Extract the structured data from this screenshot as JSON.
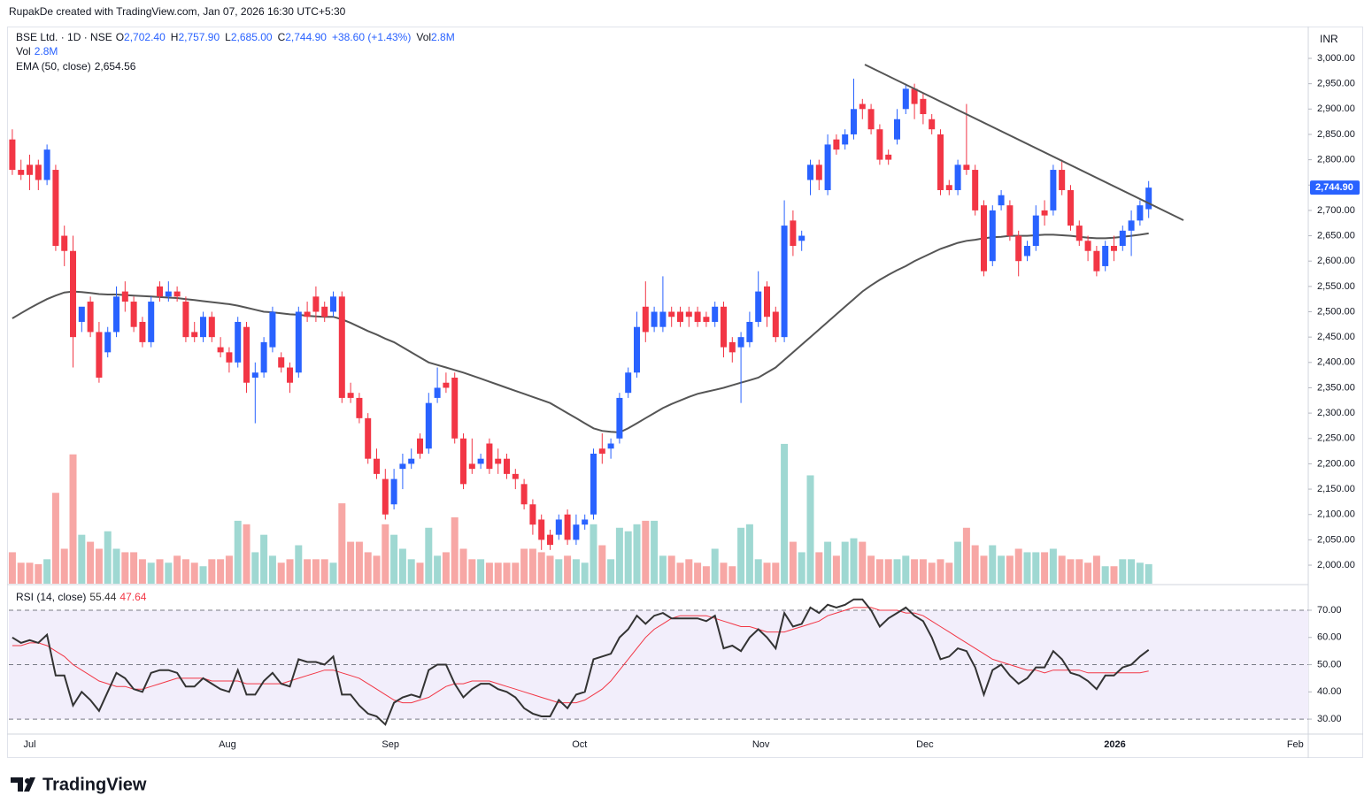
{
  "header": "RupakDe created with TradingView.com, Jan 07, 2026 16:30 UTC+5:30",
  "footer": "TradingView",
  "chart_data": {
    "type": "candlestick",
    "symbol": "BSE Ltd. · 1D · NSE",
    "ohlc_legend": [
      {
        "key": "O",
        "value": "2,702.40"
      },
      {
        "key": "H",
        "value": "2,757.90"
      },
      {
        "key": "L",
        "value": "2,685.00"
      },
      {
        "key": "C",
        "value": "2,744.90"
      },
      {
        "key": "",
        "value": "+38.60 (+1.43%)"
      },
      {
        "key": "Vol",
        "value": "2.8M"
      }
    ],
    "currency": "INR",
    "up_color": "#2962ff",
    "down_color": "#f23645",
    "open": [
      2840,
      2780,
      2790,
      2790,
      2760,
      2780,
      2650,
      2620,
      2480,
      2520,
      2460,
      2420,
      2460,
      2540,
      2520,
      2480,
      2440,
      2550,
      2530,
      2540,
      2520,
      2460,
      2450,
      2490,
      2430,
      2420,
      2400,
      2470,
      2370,
      2380,
      2430,
      2410,
      2390,
      2380,
      2500,
      2530,
      2510,
      2500,
      2530,
      2340,
      2330,
      2290,
      2210,
      2170,
      2120,
      2190,
      2200,
      2250,
      2230,
      2330,
      2360,
      2370,
      2250,
      2200,
      2200,
      2240,
      2210,
      2210,
      2180,
      2160,
      2120,
      2090,
      2060,
      2060,
      2100,
      2050,
      2080,
      2100,
      2230,
      2230,
      2250,
      2340,
      2380,
      2510,
      2470,
      2470,
      2500,
      2500,
      2500,
      2500,
      2490,
      2480,
      2510,
      2440,
      2430,
      2440,
      2480,
      2550,
      2500,
      2450,
      2680,
      2640,
      2760,
      2790,
      2740,
      2840,
      2830,
      2850,
      2910,
      2900,
      2860,
      2810,
      2840,
      2900,
      2940,
      2920,
      2880,
      2850,
      2750,
      2740,
      2790,
      2780,
      2710,
      2600,
      2710,
      2710,
      2650,
      2610,
      2630,
      2700,
      2700,
      2780,
      2740,
      2670,
      2640,
      2620,
      2590,
      2630,
      2630,
      2660,
      2680,
      2702.4
    ],
    "high": [
      2860,
      2800,
      2810,
      2800,
      2830,
      2790,
      2670,
      2650,
      2500,
      2530,
      2480,
      2470,
      2550,
      2560,
      2530,
      2490,
      2530,
      2560,
      2560,
      2550,
      2530,
      2480,
      2500,
      2500,
      2450,
      2430,
      2490,
      2480,
      2400,
      2450,
      2510,
      2420,
      2400,
      2510,
      2520,
      2550,
      2520,
      2540,
      2540,
      2360,
      2340,
      2300,
      2230,
      2190,
      2190,
      2220,
      2230,
      2260,
      2340,
      2390,
      2380,
      2380,
      2260,
      2250,
      2220,
      2250,
      2230,
      2220,
      2190,
      2170,
      2130,
      2100,
      2070,
      2100,
      2110,
      2100,
      2100,
      2230,
      2260,
      2250,
      2340,
      2390,
      2500,
      2560,
      2510,
      2570,
      2510,
      2510,
      2510,
      2510,
      2500,
      2520,
      2520,
      2450,
      2460,
      2500,
      2580,
      2560,
      2510,
      2720,
      2700,
      2660,
      2800,
      2800,
      2850,
      2850,
      2860,
      2960,
      2920,
      2910,
      2870,
      2820,
      2900,
      2950,
      2950,
      2930,
      2890,
      2860,
      2760,
      2800,
      2910,
      2790,
      2720,
      2710,
      2740,
      2720,
      2660,
      2640,
      2710,
      2720,
      2790,
      2800,
      2750,
      2680,
      2650,
      2630,
      2640,
      2650,
      2670,
      2700,
      2720,
      2757.9
    ],
    "low": [
      2770,
      2760,
      2740,
      2740,
      2750,
      2620,
      2590,
      2390,
      2460,
      2450,
      2360,
      2410,
      2450,
      2500,
      2460,
      2430,
      2430,
      2520,
      2520,
      2520,
      2440,
      2440,
      2440,
      2440,
      2410,
      2380,
      2390,
      2340,
      2280,
      2370,
      2420,
      2380,
      2340,
      2370,
      2480,
      2480,
      2480,
      2490,
      2320,
      2320,
      2280,
      2200,
      2170,
      2090,
      2110,
      2150,
      2190,
      2210,
      2220,
      2320,
      2340,
      2240,
      2150,
      2180,
      2190,
      2180,
      2180,
      2170,
      2150,
      2110,
      2060,
      2030,
      2030,
      2050,
      2040,
      2040,
      2070,
      2090,
      2200,
      2210,
      2240,
      2330,
      2370,
      2440,
      2460,
      2460,
      2470,
      2470,
      2470,
      2470,
      2470,
      2470,
      2410,
      2400,
      2320,
      2430,
      2470,
      2470,
      2440,
      2440,
      2610,
      2620,
      2730,
      2740,
      2730,
      2810,
      2820,
      2840,
      2880,
      2850,
      2790,
      2790,
      2830,
      2890,
      2880,
      2870,
      2850,
      2730,
      2730,
      2730,
      2770,
      2690,
      2570,
      2590,
      2700,
      2640,
      2570,
      2600,
      2620,
      2670,
      2690,
      2730,
      2660,
      2630,
      2600,
      2570,
      2580,
      2600,
      2620,
      2610,
      2670,
      2685
    ],
    "close": [
      2780,
      2770,
      2770,
      2760,
      2820,
      2630,
      2620,
      2450,
      2510,
      2460,
      2370,
      2460,
      2530,
      2520,
      2470,
      2440,
      2520,
      2530,
      2540,
      2530,
      2450,
      2450,
      2490,
      2450,
      2420,
      2400,
      2480,
      2360,
      2380,
      2440,
      2500,
      2390,
      2360,
      2500,
      2490,
      2500,
      2490,
      2530,
      2330,
      2330,
      2290,
      2210,
      2180,
      2100,
      2170,
      2200,
      2210,
      2220,
      2320,
      2350,
      2350,
      2250,
      2160,
      2190,
      2210,
      2190,
      2200,
      2180,
      2170,
      2120,
      2080,
      2050,
      2040,
      2090,
      2050,
      2080,
      2090,
      2220,
      2220,
      2240,
      2330,
      2380,
      2470,
      2460,
      2500,
      2500,
      2490,
      2480,
      2490,
      2480,
      2480,
      2510,
      2430,
      2420,
      2450,
      2480,
      2540,
      2490,
      2450,
      2670,
      2630,
      2650,
      2790,
      2760,
      2830,
      2820,
      2850,
      2900,
      2900,
      2860,
      2800,
      2800,
      2880,
      2940,
      2910,
      2890,
      2860,
      2740,
      2740,
      2790,
      2780,
      2700,
      2580,
      2700,
      2730,
      2650,
      2600,
      2630,
      2690,
      2690,
      2780,
      2740,
      2670,
      2640,
      2620,
      2580,
      2630,
      2620,
      2660,
      2680,
      2710,
      2744.9
    ],
    "xlim": [
      -0.4,
      149.4
    ],
    "xticks": [
      {
        "value": 2,
        "label": "Jul"
      },
      {
        "value": 24.8,
        "label": "Aug"
      },
      {
        "value": 43.6,
        "label": "Sep"
      },
      {
        "value": 65.4,
        "label": "Oct"
      },
      {
        "value": 86.3,
        "label": "Nov"
      },
      {
        "value": 105.2,
        "label": "Dec"
      },
      {
        "value": 127.1,
        "label": "2026"
      },
      {
        "value": 147.9,
        "label": "Feb"
      }
    ],
    "ylim": [
      1963.4,
      3062.8
    ],
    "yticks": [
      {
        "value": 2000,
        "label": "2,000.00"
      },
      {
        "value": 2050,
        "label": "2,050.00"
      },
      {
        "value": 2100,
        "label": "2,100.00"
      },
      {
        "value": 2150,
        "label": "2,150.00"
      },
      {
        "value": 2200,
        "label": "2,200.00"
      },
      {
        "value": 2250,
        "label": "2,250.00"
      },
      {
        "value": 2300,
        "label": "2,300.00"
      },
      {
        "value": 2350,
        "label": "2,350.00"
      },
      {
        "value": 2400,
        "label": "2,400.00"
      },
      {
        "value": 2450,
        "label": "2,450.00"
      },
      {
        "value": 2500,
        "label": "2,500.00"
      },
      {
        "value": 2550,
        "label": "2,550.00"
      },
      {
        "value": 2600,
        "label": "2,600.00"
      },
      {
        "value": 2650,
        "label": "2,650.00"
      },
      {
        "value": 2700,
        "label": "2,700.00"
      },
      {
        "value": 2750,
        "label": "2,750.00"
      },
      {
        "value": 2800,
        "label": "2,800.00"
      },
      {
        "value": 2850,
        "label": "2,850.00"
      },
      {
        "value": 2900,
        "label": "2,900.00"
      },
      {
        "value": 2950,
        "label": "2,950.00"
      },
      {
        "value": 3000,
        "label": "3,000.00"
      }
    ],
    "last_price": {
      "value": 2744.9,
      "label": "2,744.90"
    },
    "volume": {
      "name": "Vol",
      "label": "2.8M",
      "vlim": [
        0,
        79.7
      ],
      "up_color": "#9fd8d2",
      "down_color": "#f7a7a5",
      "values": [
        4.5,
        3,
        3,
        2.8,
        3.5,
        13,
        5,
        18.5,
        7,
        6,
        5,
        7.5,
        5,
        4.5,
        4.5,
        3.5,
        3,
        3.5,
        3,
        4,
        3.5,
        3,
        2.5,
        3.5,
        3.5,
        4,
        9,
        8.5,
        4.5,
        7,
        4,
        3,
        3.5,
        5.5,
        3.5,
        3.5,
        3.5,
        3,
        11.5,
        6,
        6,
        4.5,
        4,
        8.5,
        7,
        5,
        3.5,
        3,
        8,
        4,
        4.5,
        9.5,
        5,
        3.5,
        3.5,
        3,
        3,
        3,
        3,
        5,
        5,
        4.5,
        4,
        3.5,
        4,
        3.5,
        3,
        8.5,
        5.5,
        3.5,
        8,
        7.5,
        8.5,
        9,
        9,
        4,
        4,
        3,
        3.5,
        3,
        2.5,
        5,
        3,
        2.5,
        8,
        8.5,
        3.5,
        3,
        3,
        20,
        6,
        4.5,
        15.5,
        4.5,
        6,
        4,
        6,
        6.5,
        6,
        4,
        3.5,
        3.5,
        3.5,
        4,
        3.5,
        3.5,
        3,
        3.5,
        3,
        6,
        8,
        5.5,
        4,
        5.5,
        4,
        4,
        5,
        4.5,
        4.5,
        4.5,
        5,
        4,
        3.5,
        3.5,
        3,
        4,
        2.5,
        2.5,
        3.5,
        3.5,
        3,
        2.8
      ]
    },
    "ema": {
      "name": "EMA (50, close)",
      "label": "2,654.56",
      "color": "#555555",
      "values": [
        2487,
        2497,
        2507,
        2516,
        2525,
        2532,
        2538,
        2540,
        2539,
        2537,
        2535,
        2534,
        2534,
        2533,
        2532,
        2531,
        2530,
        2529,
        2528,
        2527,
        2525,
        2523,
        2521,
        2519,
        2517,
        2515,
        2512,
        2508,
        2504,
        2500,
        2499,
        2497,
        2495,
        2494,
        2492,
        2491,
        2490,
        2490,
        2485,
        2478,
        2470,
        2462,
        2455,
        2447,
        2440,
        2430,
        2420,
        2410,
        2400,
        2395,
        2390,
        2385,
        2380,
        2374,
        2368,
        2362,
        2356,
        2350,
        2344,
        2338,
        2332,
        2326,
        2320,
        2310,
        2300,
        2290,
        2280,
        2270,
        2265,
        2263,
        2262,
        2270,
        2280,
        2290,
        2300,
        2310,
        2318,
        2325,
        2332,
        2338,
        2342,
        2346,
        2350,
        2355,
        2360,
        2365,
        2370,
        2380,
        2390,
        2405,
        2420,
        2435,
        2450,
        2465,
        2480,
        2495,
        2510,
        2525,
        2540,
        2552,
        2563,
        2573,
        2582,
        2590,
        2600,
        2608,
        2616,
        2624,
        2630,
        2636,
        2640,
        2642,
        2645,
        2647,
        2648,
        2650,
        2650,
        2650,
        2651,
        2652,
        2652,
        2651,
        2650,
        2648,
        2646,
        2645,
        2645,
        2646,
        2648,
        2650,
        2652,
        2654.56
      ]
    },
    "rsi": {
      "name": "RSI (14, close)",
      "label": "55.44",
      "ma_label": "47.64",
      "color": "#333333",
      "ma_color": "#f23645",
      "band_color": "#f2eefb",
      "ylim": [
        24.5,
        79.1
      ],
      "band": [
        30,
        70
      ],
      "yticks": [
        {
          "value": 30,
          "label": "30.00"
        },
        {
          "value": 40,
          "label": "40.00"
        },
        {
          "value": 50,
          "label": "50.00"
        },
        {
          "value": 60,
          "label": "60.00"
        },
        {
          "value": 70,
          "label": "70.00"
        }
      ],
      "dashed": [
        30,
        50,
        70
      ],
      "values": [
        60,
        58,
        59,
        58,
        61,
        46,
        46,
        35,
        40,
        37,
        33,
        40,
        47,
        45,
        41,
        40,
        47,
        48,
        48,
        47,
        42,
        42,
        45,
        43,
        41,
        40,
        48,
        39,
        39,
        44,
        47,
        43,
        42,
        52,
        51,
        51,
        50,
        53,
        39,
        39,
        35,
        32,
        31,
        28,
        36,
        38,
        39,
        38,
        48,
        50,
        50,
        43,
        38,
        41,
        43,
        43,
        41,
        40,
        38,
        34,
        32,
        31,
        31,
        37,
        34,
        39,
        40,
        52,
        53,
        54,
        60,
        63,
        68,
        65,
        68,
        69,
        67,
        67,
        67,
        67,
        66,
        68,
        56,
        57,
        55,
        60,
        63,
        60,
        56,
        69,
        64,
        65,
        71,
        69,
        72,
        71,
        72,
        74,
        74,
        70,
        64,
        67,
        69,
        71,
        68,
        66,
        60,
        52,
        53,
        56,
        55,
        49,
        39,
        48,
        50,
        46,
        43,
        45,
        49,
        49,
        55,
        52,
        47,
        46,
        44,
        41,
        46,
        46,
        49,
        50,
        53,
        55.44
      ],
      "ma_values": [
        57,
        57,
        58,
        58,
        57,
        55,
        53,
        50,
        48,
        46,
        44,
        43,
        42,
        42,
        41,
        41,
        42,
        43,
        44,
        45,
        45,
        45,
        45,
        44,
        44,
        44,
        44,
        43,
        43,
        43,
        43,
        43,
        44,
        45,
        46,
        47,
        48,
        48,
        47,
        46,
        45,
        43,
        41,
        39,
        37,
        36,
        36,
        37,
        38,
        40,
        42,
        43,
        43,
        44,
        44,
        44,
        43,
        42,
        41,
        40,
        39,
        38,
        37,
        36,
        36,
        36,
        37,
        39,
        41,
        44,
        48,
        52,
        56,
        60,
        63,
        65,
        67,
        68,
        68,
        68,
        68,
        67,
        66,
        65,
        64,
        64,
        63,
        62,
        62,
        62,
        63,
        64,
        65,
        66,
        68,
        69,
        70,
        71,
        71,
        71,
        70,
        70,
        70,
        69,
        69,
        68,
        66,
        64,
        62,
        60,
        58,
        56,
        54,
        52,
        51,
        50,
        49,
        48,
        48,
        47,
        48,
        48,
        48,
        48,
        47,
        47,
        47,
        47,
        47,
        47,
        47,
        47.64
      ]
    }
  }
}
